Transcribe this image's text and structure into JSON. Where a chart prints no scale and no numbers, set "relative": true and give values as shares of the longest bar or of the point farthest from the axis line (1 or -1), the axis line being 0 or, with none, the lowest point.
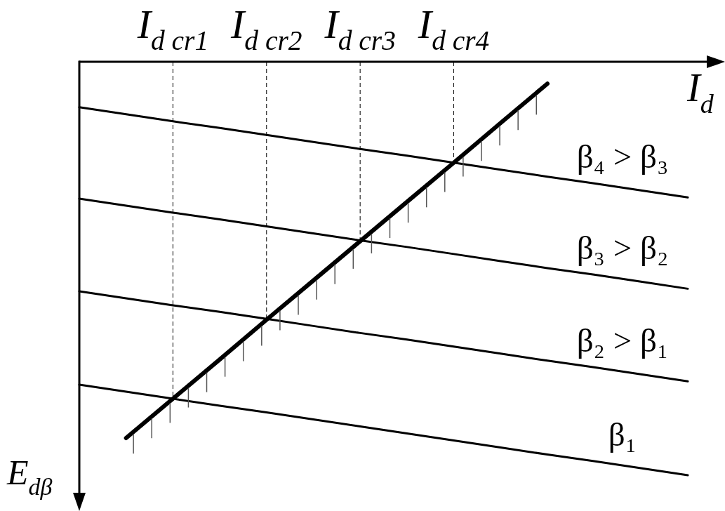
{
  "chart_data": {
    "type": "line",
    "relative": true,
    "xlabel": "I$_{d}$",
    "ylabel": "E$_{dβ}$",
    "categories": [
      null,
      null,
      "I$_{d cr1}$",
      null,
      "I$_{d cr2}$",
      null,
      "I$_{d cr3}$",
      null,
      "I$_{d cr4}$",
      null,
      null,
      null,
      null,
      null
    ],
    "series": [
      {
        "name": "β₁",
        "color": "#000000",
        "values": [
          -0.781,
          -0.798,
          -0.815,
          -0.832,
          -0.848,
          -0.865,
          -0.882,
          -0.899,
          -0.916,
          -0.933,
          -0.95,
          -0.966,
          -0.983,
          -1
        ]
      },
      {
        "name": "β₂ > β₁",
        "color": "#000000",
        "values": [
          -0.555,
          -0.572,
          -0.589,
          -0.605,
          -0.622,
          -0.639,
          -0.656,
          -0.672,
          -0.689,
          -0.706,
          -0.723,
          -0.739,
          -0.756,
          -0.773
        ]
      },
      {
        "name": "β₃ > β₂",
        "color": "#000000",
        "values": [
          -0.331,
          -0.348,
          -0.365,
          -0.381,
          -0.398,
          -0.415,
          -0.432,
          -0.448,
          -0.465,
          -0.482,
          -0.499,
          -0.515,
          -0.532,
          -0.549
        ]
      },
      {
        "name": "β₄ > β₃",
        "color": "#000000",
        "values": [
          -0.11,
          -0.127,
          -0.144,
          -0.16,
          -0.177,
          -0.194,
          -0.211,
          -0.227,
          -0.244,
          -0.261,
          -0.278,
          -0.294,
          -0.311,
          -0.328
        ]
      },
      {
        "color": "#000000",
        "values": [
          null,
          -0.91,
          -0.815,
          -0.72,
          -0.624,
          -0.529,
          -0.434,
          -0.339,
          -0.244,
          -0.148,
          -0.053,
          null,
          null,
          null
        ]
      }
    ],
    "ref_lines": [
      {
        "axis": "x",
        "value": "I$_{d cr1}$",
        "color": "#000000",
        "line_style": "dashed"
      },
      {
        "axis": "x",
        "value": "I$_{d cr2}$",
        "color": "#000000",
        "line_style": "dashed"
      },
      {
        "axis": "x",
        "value": "I$_{d cr3}$",
        "color": "#000000",
        "line_style": "dashed"
      },
      {
        "axis": "x",
        "value": "I$_{d cr4}$",
        "color": "#000000",
        "line_style": "dashed"
      }
    ]
  }
}
